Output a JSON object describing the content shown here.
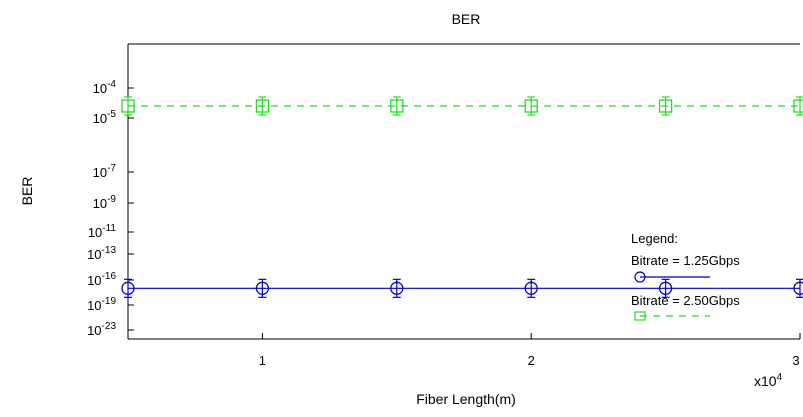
{
  "chart_data": {
    "type": "line",
    "title": "BER",
    "xlabel": "Fiber Length(m)",
    "ylabel": "BER",
    "x_multiplier_label": {
      "base": "x10",
      "exp": "4"
    },
    "x_scale_factor": 10000,
    "xlim": [
      5000,
      30000
    ],
    "ylim_exp": [
      -24,
      -3
    ],
    "y_scale": "log",
    "grid": false,
    "x_ticks": [
      {
        "value": 10000,
        "label": "1"
      },
      {
        "value": 20000,
        "label": "2"
      },
      {
        "value": 30000,
        "label": "3"
      }
    ],
    "y_ticks": [
      {
        "exp": -4,
        "label_base": "10",
        "label_exp": "-4"
      },
      {
        "exp": -5,
        "label_base": "10",
        "label_exp": "-5"
      },
      {
        "exp": -7,
        "label_base": "10",
        "label_exp": "-7"
      },
      {
        "exp": -9,
        "label_base": "10",
        "label_exp": "-9"
      },
      {
        "exp": -11,
        "label_base": "10",
        "label_exp": "-11"
      },
      {
        "exp": -13,
        "label_base": "10",
        "label_exp": "-13"
      },
      {
        "exp": -16,
        "label_base": "10",
        "label_exp": "-16"
      },
      {
        "exp": -19,
        "label_base": "10",
        "label_exp": "-19"
      },
      {
        "exp": -23,
        "label_base": "10",
        "label_exp": "-23"
      }
    ],
    "legend": {
      "title": "Legend:",
      "position": "right"
    },
    "series": [
      {
        "name": "Bitrate = 1.25Gbps",
        "color": "#0000cc",
        "marker": "circle",
        "line_style": "solid",
        "x": [
          5000,
          10000,
          15000,
          20000,
          25000,
          30000
        ],
        "y_exp": [
          -17,
          -17,
          -17,
          -17,
          -17,
          -17
        ]
      },
      {
        "name": "Bitrate = 2.50Gbps",
        "color": "#22dd22",
        "marker": "square",
        "line_style": "dashed",
        "x": [
          5000,
          10000,
          15000,
          20000,
          25000,
          30000
        ],
        "y_exp": [
          -4.6,
          -4.6,
          -4.6,
          -4.6,
          -4.6,
          -4.6
        ]
      }
    ]
  }
}
